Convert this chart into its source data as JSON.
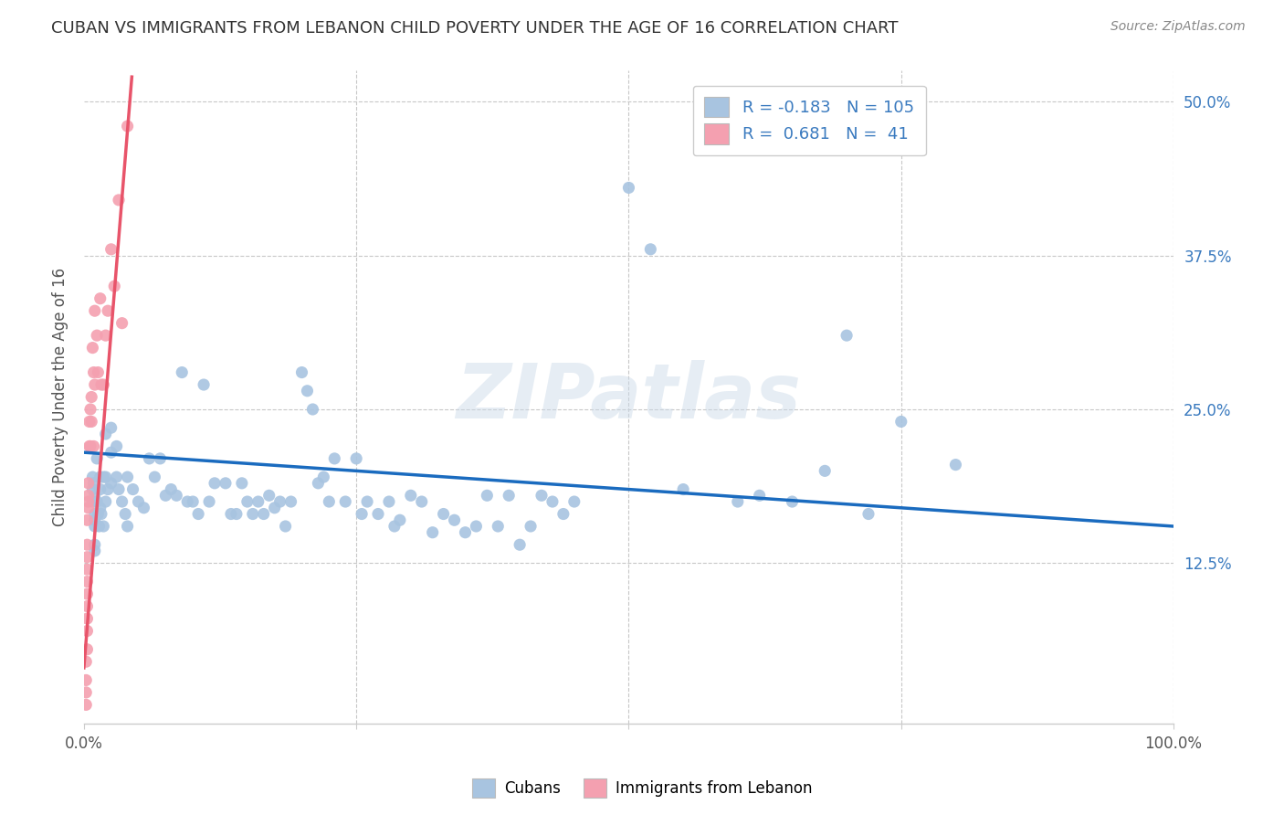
{
  "title": "CUBAN VS IMMIGRANTS FROM LEBANON CHILD POVERTY UNDER THE AGE OF 16 CORRELATION CHART",
  "source": "Source: ZipAtlas.com",
  "ylabel": "Child Poverty Under the Age of 16",
  "xlim": [
    0.0,
    1.0
  ],
  "ylim": [
    -0.005,
    0.525
  ],
  "xticks": [
    0.0,
    0.25,
    0.5,
    0.75,
    1.0
  ],
  "xtick_labels": [
    "0.0%",
    "",
    "",
    "",
    "100.0%"
  ],
  "yticks": [
    0.125,
    0.25,
    0.375,
    0.5
  ],
  "ytick_labels": [
    "12.5%",
    "25.0%",
    "37.5%",
    "50.0%"
  ],
  "watermark": "ZIPatlas",
  "legend_R_cuban": "-0.183",
  "legend_N_cuban": "105",
  "legend_R_lebanon": " 0.681",
  "legend_N_lebanon": " 41",
  "cuban_color": "#a8c4e0",
  "lebanon_color": "#f4a0b0",
  "cuban_line_color": "#1a6bbf",
  "lebanon_line_color": "#e8546a",
  "background_color": "#ffffff",
  "grid_color": "#c8c8c8",
  "title_color": "#333333",
  "cuban_scatter_x": [
    0.008,
    0.008,
    0.008,
    0.009,
    0.01,
    0.01,
    0.01,
    0.01,
    0.01,
    0.01,
    0.012,
    0.012,
    0.013,
    0.014,
    0.015,
    0.015,
    0.015,
    0.016,
    0.018,
    0.018,
    0.02,
    0.02,
    0.02,
    0.022,
    0.025,
    0.025,
    0.025,
    0.03,
    0.03,
    0.032,
    0.035,
    0.038,
    0.04,
    0.04,
    0.045,
    0.05,
    0.055,
    0.06,
    0.065,
    0.07,
    0.075,
    0.08,
    0.085,
    0.09,
    0.095,
    0.1,
    0.105,
    0.11,
    0.115,
    0.12,
    0.13,
    0.135,
    0.14,
    0.145,
    0.15,
    0.155,
    0.16,
    0.165,
    0.17,
    0.175,
    0.18,
    0.185,
    0.19,
    0.2,
    0.205,
    0.21,
    0.215,
    0.22,
    0.225,
    0.23,
    0.24,
    0.25,
    0.255,
    0.26,
    0.27,
    0.28,
    0.285,
    0.29,
    0.3,
    0.31,
    0.32,
    0.33,
    0.34,
    0.35,
    0.36,
    0.37,
    0.38,
    0.39,
    0.4,
    0.41,
    0.42,
    0.43,
    0.44,
    0.45,
    0.5,
    0.52,
    0.55,
    0.6,
    0.62,
    0.65,
    0.68,
    0.7,
    0.72,
    0.75,
    0.8
  ],
  "cuban_scatter_y": [
    0.195,
    0.185,
    0.175,
    0.19,
    0.18,
    0.165,
    0.16,
    0.155,
    0.14,
    0.135,
    0.21,
    0.175,
    0.165,
    0.155,
    0.195,
    0.185,
    0.17,
    0.165,
    0.195,
    0.155,
    0.23,
    0.195,
    0.175,
    0.185,
    0.235,
    0.215,
    0.19,
    0.22,
    0.195,
    0.185,
    0.175,
    0.165,
    0.195,
    0.155,
    0.185,
    0.175,
    0.17,
    0.21,
    0.195,
    0.21,
    0.18,
    0.185,
    0.18,
    0.28,
    0.175,
    0.175,
    0.165,
    0.27,
    0.175,
    0.19,
    0.19,
    0.165,
    0.165,
    0.19,
    0.175,
    0.165,
    0.175,
    0.165,
    0.18,
    0.17,
    0.175,
    0.155,
    0.175,
    0.28,
    0.265,
    0.25,
    0.19,
    0.195,
    0.175,
    0.21,
    0.175,
    0.21,
    0.165,
    0.175,
    0.165,
    0.175,
    0.155,
    0.16,
    0.18,
    0.175,
    0.15,
    0.165,
    0.16,
    0.15,
    0.155,
    0.18,
    0.155,
    0.18,
    0.14,
    0.155,
    0.18,
    0.175,
    0.165,
    0.175,
    0.43,
    0.38,
    0.185,
    0.175,
    0.18,
    0.175,
    0.2,
    0.31,
    0.165,
    0.24,
    0.205
  ],
  "lebanon_scatter_x": [
    0.002,
    0.002,
    0.002,
    0.002,
    0.003,
    0.003,
    0.003,
    0.003,
    0.003,
    0.003,
    0.003,
    0.003,
    0.003,
    0.003,
    0.004,
    0.004,
    0.004,
    0.004,
    0.005,
    0.005,
    0.006,
    0.006,
    0.007,
    0.007,
    0.008,
    0.009,
    0.009,
    0.01,
    0.01,
    0.012,
    0.013,
    0.015,
    0.016,
    0.018,
    0.02,
    0.022,
    0.025,
    0.028,
    0.032,
    0.035,
    0.04
  ],
  "lebanon_scatter_y": [
    0.01,
    0.02,
    0.03,
    0.045,
    0.055,
    0.07,
    0.08,
    0.09,
    0.1,
    0.11,
    0.12,
    0.13,
    0.14,
    0.16,
    0.17,
    0.175,
    0.18,
    0.19,
    0.22,
    0.24,
    0.25,
    0.22,
    0.24,
    0.26,
    0.3,
    0.22,
    0.28,
    0.27,
    0.33,
    0.31,
    0.28,
    0.34,
    0.27,
    0.27,
    0.31,
    0.33,
    0.38,
    0.35,
    0.42,
    0.32,
    0.48
  ],
  "cuban_trend_x": [
    0.0,
    1.0
  ],
  "cuban_trend_y": [
    0.215,
    0.155
  ],
  "lebanon_trend_x": [
    0.0,
    0.044
  ],
  "lebanon_trend_y": [
    0.04,
    0.52
  ]
}
